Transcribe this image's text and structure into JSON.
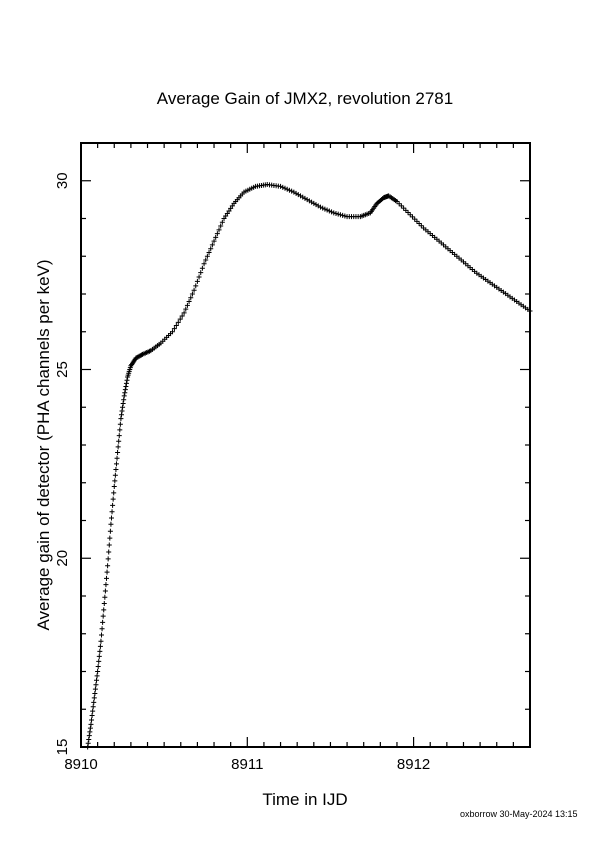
{
  "chart_data": {
    "type": "scatter",
    "marker": "plus",
    "title": "Average Gain of JMX2, revolution 2781",
    "xlabel": "Time in IJD",
    "ylabel": "Average gain of detector (PHA channels per keV)",
    "xlim": [
      8910,
      8912.7
    ],
    "ylim": [
      15,
      31
    ],
    "xticks": [
      8910,
      8911,
      8912
    ],
    "xtick_labels": [
      "8910",
      "8911",
      "8912"
    ],
    "yticks": [
      15,
      20,
      25,
      30
    ],
    "ytick_labels": [
      "15",
      "20",
      "25",
      "30"
    ],
    "grid": false,
    "legend": "none",
    "series": [
      {
        "color": "#000000",
        "points": [
          [
            8910.04,
            15.0
          ],
          [
            8910.06,
            15.6
          ],
          [
            8910.08,
            16.3
          ],
          [
            8910.1,
            17.0
          ],
          [
            8910.12,
            17.8
          ],
          [
            8910.14,
            18.8
          ],
          [
            8910.16,
            19.8
          ],
          [
            8910.18,
            20.9
          ],
          [
            8910.2,
            21.9
          ],
          [
            8910.22,
            22.8
          ],
          [
            8910.24,
            23.7
          ],
          [
            8910.26,
            24.3
          ],
          [
            8910.28,
            24.8
          ],
          [
            8910.3,
            25.1
          ],
          [
            8910.33,
            25.3
          ],
          [
            8910.37,
            25.4
          ],
          [
            8910.42,
            25.5
          ],
          [
            8910.48,
            25.7
          ],
          [
            8910.55,
            26.0
          ],
          [
            8910.62,
            26.5
          ],
          [
            8910.68,
            27.1
          ],
          [
            8910.74,
            27.8
          ],
          [
            8910.8,
            28.4
          ],
          [
            8910.86,
            29.0
          ],
          [
            8910.92,
            29.4
          ],
          [
            8910.98,
            29.7
          ],
          [
            8911.05,
            29.85
          ],
          [
            8911.12,
            29.9
          ],
          [
            8911.2,
            29.85
          ],
          [
            8911.28,
            29.7
          ],
          [
            8911.36,
            29.5
          ],
          [
            8911.44,
            29.3
          ],
          [
            8911.52,
            29.15
          ],
          [
            8911.6,
            29.05
          ],
          [
            8911.68,
            29.05
          ],
          [
            8911.74,
            29.15
          ],
          [
            8911.78,
            29.4
          ],
          [
            8911.82,
            29.55
          ],
          [
            8911.85,
            29.6
          ],
          [
            8911.9,
            29.45
          ],
          [
            8911.98,
            29.1
          ],
          [
            8912.06,
            28.75
          ],
          [
            8912.14,
            28.45
          ],
          [
            8912.22,
            28.15
          ],
          [
            8912.3,
            27.85
          ],
          [
            8912.38,
            27.55
          ],
          [
            8912.46,
            27.3
          ],
          [
            8912.54,
            27.05
          ],
          [
            8912.62,
            26.8
          ],
          [
            8912.7,
            26.55
          ]
        ]
      }
    ]
  },
  "footer": "oxborrow 30-May-2024 13:15"
}
